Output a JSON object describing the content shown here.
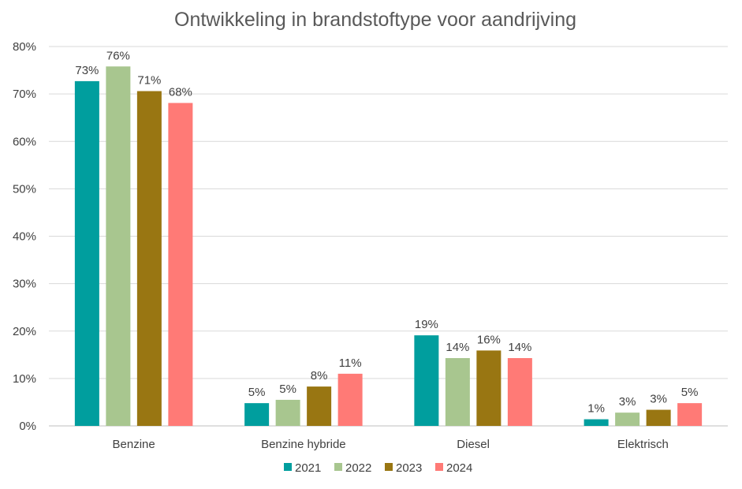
{
  "chart_data": {
    "type": "bar",
    "title": "Ontwikkeling in brandstoftype voor aandrijving",
    "xlabel": "",
    "ylabel": "",
    "ylim": [
      0,
      80
    ],
    "yticks": [
      "0%",
      "10%",
      "20%",
      "30%",
      "40%",
      "50%",
      "60%",
      "70%",
      "80%"
    ],
    "categories": [
      "Benzine",
      "Benzine hybride",
      "Diesel",
      "Elektrisch"
    ],
    "series": [
      {
        "name": "2021",
        "color": "#009e9e",
        "values": [
          72.7,
          4.8,
          19.1,
          1.4
        ],
        "labels": [
          "73%",
          "5%",
          "19%",
          "1%"
        ]
      },
      {
        "name": "2022",
        "color": "#a8c68f",
        "values": [
          75.8,
          5.5,
          14.3,
          2.8
        ],
        "labels": [
          "76%",
          "5%",
          "14%",
          "3%"
        ]
      },
      {
        "name": "2023",
        "color": "#997612",
        "values": [
          70.6,
          8.3,
          15.9,
          3.4
        ],
        "labels": [
          "71%",
          "8%",
          "16%",
          "3%"
        ]
      },
      {
        "name": "2024",
        "color": "#ff7a76",
        "values": [
          68.1,
          11.0,
          14.3,
          4.8
        ],
        "labels": [
          "68%",
          "11%",
          "14%",
          "5%"
        ]
      }
    ],
    "grid": true,
    "legend_position": "bottom"
  }
}
